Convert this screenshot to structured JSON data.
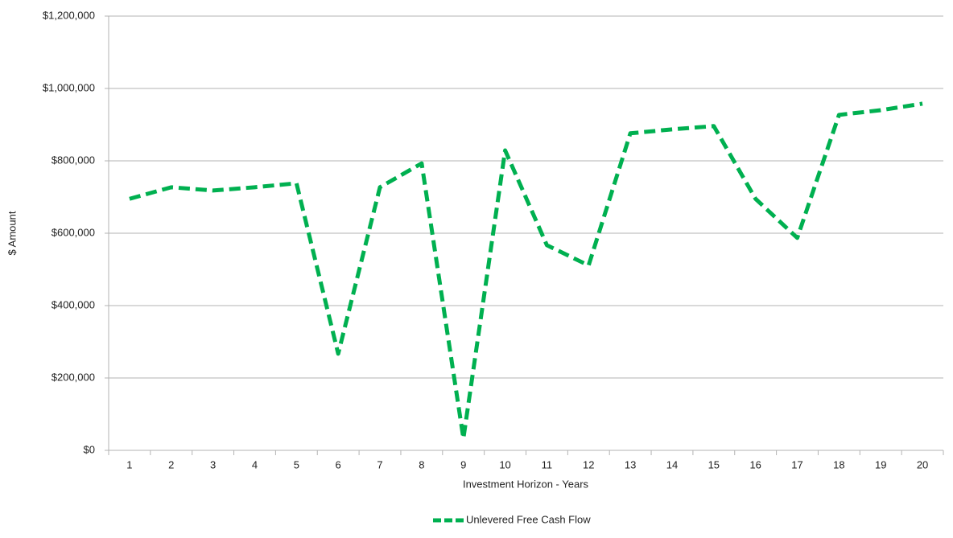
{
  "chart_data": {
    "type": "line",
    "xlabel": "Investment Horizon - Years",
    "ylabel": "$ Amount",
    "categories": [
      "1",
      "2",
      "3",
      "4",
      "5",
      "6",
      "7",
      "8",
      "9",
      "10",
      "11",
      "12",
      "13",
      "14",
      "15",
      "16",
      "17",
      "18",
      "19",
      "20"
    ],
    "series": [
      {
        "name": "Unlevered Free Cash Flow",
        "color": "#00b050",
        "values": [
          695000,
          727000,
          718000,
          727000,
          738000,
          267000,
          727000,
          793000,
          33000,
          829000,
          567000,
          511000,
          876000,
          887000,
          896000,
          695000,
          587000,
          927000,
          940000,
          958000
        ]
      }
    ],
    "ylim": [
      0,
      1200000
    ],
    "yticks": [
      {
        "value": 0,
        "label": "$0"
      },
      {
        "value": 200000,
        "label": "$200,000"
      },
      {
        "value": 400000,
        "label": "$400,000"
      },
      {
        "value": 600000,
        "label": "$600,000"
      },
      {
        "value": 800000,
        "label": "$800,000"
      },
      {
        "value": 1000000,
        "label": "$1,000,000"
      },
      {
        "value": 1200000,
        "label": "$1,200,000"
      }
    ],
    "grid": true,
    "legend": "bottom"
  }
}
